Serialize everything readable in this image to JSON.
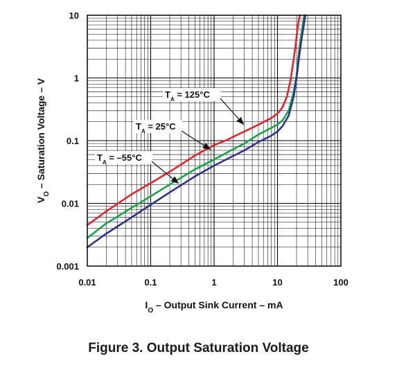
{
  "figure": {
    "caption": "Figure 3. Output Saturation Voltage"
  },
  "chart_data": {
    "type": "line",
    "x_scale": "log",
    "y_scale": "log",
    "xlim": [
      0.01,
      100
    ],
    "ylim": [
      0.001,
      10
    ],
    "grid": true,
    "x_ticks": [
      "0.01",
      "0.1",
      "1",
      "10",
      "100"
    ],
    "y_ticks": [
      "0.001",
      "0.01",
      "0.1",
      "1",
      "10"
    ],
    "xlabel": {
      "main": "I",
      "sub": "O",
      "rest": " – Output Sink Current – mA"
    },
    "ylabel": {
      "main": "V",
      "sub": "O",
      "rest": " – Saturation Voltage – V"
    },
    "series": [
      {
        "name": "T_A = 125°C",
        "label": {
          "main": "T",
          "sub": "A",
          "rest": " = 125°C"
        },
        "color": "#e3242b",
        "x": [
          0.01,
          0.02,
          0.05,
          0.1,
          0.2,
          0.5,
          1,
          1.5,
          2,
          3,
          5,
          8,
          10,
          12,
          14,
          16,
          18,
          19.5,
          21,
          22.5
        ],
        "y": [
          0.0045,
          0.0075,
          0.014,
          0.021,
          0.032,
          0.058,
          0.085,
          0.1,
          0.115,
          0.14,
          0.18,
          0.23,
          0.27,
          0.34,
          0.5,
          0.9,
          2.0,
          3.6,
          7,
          10
        ]
      },
      {
        "name": "T_A = 25°C",
        "label": {
          "main": "T",
          "sub": "A",
          "rest": " = 25°C"
        },
        "color": "#16a34a",
        "x": [
          0.01,
          0.02,
          0.05,
          0.1,
          0.2,
          0.5,
          1,
          2,
          3,
          5,
          8,
          10,
          12,
          15,
          18,
          20,
          21.5,
          23,
          24.5,
          25.5,
          26.5
        ],
        "y": [
          0.0028,
          0.0048,
          0.0085,
          0.013,
          0.02,
          0.035,
          0.05,
          0.073,
          0.09,
          0.125,
          0.16,
          0.18,
          0.21,
          0.3,
          0.6,
          1.1,
          2.3,
          4,
          6,
          8,
          10
        ]
      },
      {
        "name": "T_A = –55°C",
        "label": {
          "main": "T",
          "sub": "A",
          "rest": " = –55°C"
        },
        "color": "#2e3192",
        "x": [
          0.01,
          0.02,
          0.05,
          0.1,
          0.2,
          0.5,
          1,
          2,
          3,
          5,
          8,
          10,
          12,
          15,
          18,
          20,
          22,
          24,
          26,
          27.5
        ],
        "y": [
          0.002,
          0.0033,
          0.006,
          0.0095,
          0.015,
          0.027,
          0.04,
          0.057,
          0.07,
          0.095,
          0.12,
          0.14,
          0.17,
          0.25,
          0.5,
          1.0,
          2.2,
          4.2,
          7,
          10
        ]
      }
    ]
  }
}
